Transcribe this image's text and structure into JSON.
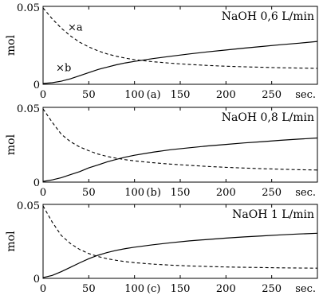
{
  "chart_data": [
    {
      "type": "line",
      "panel_label": "(a)",
      "title": "NaOH 0,6 L/min",
      "ylabel": "mol",
      "xlabel": "",
      "x_unit_label": "sec.",
      "xlim": [
        0,
        300
      ],
      "ylim": [
        0,
        0.05
      ],
      "xticks": [
        0,
        50,
        100,
        150,
        200,
        250
      ],
      "yticks": [
        0,
        0.05
      ],
      "ytick_labels": [
        "0",
        "0.05"
      ],
      "grid": false,
      "legend": "none",
      "annotations": [
        "×a",
        "×b"
      ],
      "series": [
        {
          "name": "a",
          "style": "dashed",
          "x": [
            0,
            10,
            20,
            30,
            40,
            50,
            60,
            70,
            80,
            90,
            100,
            120,
            140,
            160,
            180,
            200,
            220,
            240,
            260,
            280,
            300
          ],
          "y": [
            0.049,
            0.042,
            0.036,
            0.031,
            0.027,
            0.024,
            0.0215,
            0.0195,
            0.018,
            0.0168,
            0.0158,
            0.0145,
            0.0135,
            0.0127,
            0.0121,
            0.0116,
            0.0112,
            0.0109,
            0.0106,
            0.0104,
            0.0102
          ]
        },
        {
          "name": "b",
          "style": "solid",
          "x": [
            0,
            10,
            20,
            30,
            40,
            50,
            60,
            70,
            80,
            90,
            100,
            120,
            140,
            160,
            180,
            200,
            220,
            240,
            260,
            280,
            300
          ],
          "y": [
            0.0005,
            0.001,
            0.002,
            0.0035,
            0.0055,
            0.0075,
            0.0095,
            0.011,
            0.0125,
            0.0137,
            0.0147,
            0.0165,
            0.018,
            0.0195,
            0.0208,
            0.022,
            0.0232,
            0.0243,
            0.0254,
            0.0264,
            0.0275
          ]
        }
      ]
    },
    {
      "type": "line",
      "panel_label": "(b)",
      "title": "NaOH 0,8  L/min",
      "ylabel": "mol",
      "xlabel": "",
      "x_unit_label": "sec.",
      "xlim": [
        0,
        300
      ],
      "ylim": [
        0,
        0.05
      ],
      "xticks": [
        0,
        50,
        100,
        150,
        200,
        250
      ],
      "yticks": [
        0,
        0.05
      ],
      "ytick_labels": [
        "0",
        "0.05"
      ],
      "grid": false,
      "legend": "none",
      "series": [
        {
          "name": "a",
          "style": "dashed",
          "x": [
            0,
            10,
            20,
            30,
            40,
            50,
            60,
            70,
            80,
            90,
            100,
            120,
            140,
            160,
            180,
            200,
            220,
            240,
            260,
            280,
            300
          ],
          "y": [
            0.049,
            0.04,
            0.032,
            0.027,
            0.0235,
            0.021,
            0.0188,
            0.0172,
            0.016,
            0.015,
            0.0142,
            0.013,
            0.012,
            0.0112,
            0.0105,
            0.0099,
            0.0094,
            0.009,
            0.0086,
            0.0083,
            0.0081
          ]
        },
        {
          "name": "b",
          "style": "solid",
          "x": [
            0,
            10,
            20,
            30,
            40,
            50,
            60,
            70,
            80,
            90,
            100,
            120,
            140,
            160,
            180,
            200,
            220,
            240,
            260,
            280,
            300
          ],
          "y": [
            0.0005,
            0.0015,
            0.003,
            0.005,
            0.007,
            0.0095,
            0.0115,
            0.0135,
            0.0152,
            0.0167,
            0.018,
            0.02,
            0.0217,
            0.023,
            0.0242,
            0.0252,
            0.0262,
            0.0271,
            0.028,
            0.0288,
            0.0295
          ]
        }
      ]
    },
    {
      "type": "line",
      "panel_label": "(c)",
      "title": "NaOH 1 L/min",
      "ylabel": "mol",
      "xlabel": "",
      "x_unit_label": "sec.",
      "xlim": [
        0,
        300
      ],
      "ylim": [
        0,
        0.05
      ],
      "xticks": [
        0,
        50,
        100,
        150,
        200,
        250
      ],
      "yticks": [
        0,
        0.05
      ],
      "ytick_labels": [
        "0",
        "0.05"
      ],
      "grid": false,
      "legend": "none",
      "series": [
        {
          "name": "a",
          "style": "dashed",
          "x": [
            0,
            10,
            20,
            30,
            40,
            50,
            60,
            70,
            80,
            90,
            100,
            120,
            140,
            160,
            180,
            200,
            220,
            240,
            260,
            280,
            300
          ],
          "y": [
            0.049,
            0.038,
            0.029,
            0.0235,
            0.0195,
            0.0168,
            0.0148,
            0.0133,
            0.0122,
            0.0113,
            0.0106,
            0.0096,
            0.0089,
            0.0084,
            0.008,
            0.0077,
            0.0075,
            0.0073,
            0.0071,
            0.007,
            0.0069
          ]
        },
        {
          "name": "b",
          "style": "solid",
          "x": [
            0,
            10,
            20,
            30,
            40,
            50,
            60,
            70,
            80,
            90,
            100,
            120,
            140,
            160,
            180,
            200,
            220,
            240,
            260,
            280,
            300
          ],
          "y": [
            0.0005,
            0.002,
            0.0045,
            0.0075,
            0.0105,
            0.0133,
            0.0156,
            0.0174,
            0.0189,
            0.0201,
            0.0211,
            0.0227,
            0.0241,
            0.0253,
            0.0263,
            0.0272,
            0.028,
            0.0287,
            0.0294,
            0.03,
            0.0305
          ]
        }
      ]
    }
  ]
}
